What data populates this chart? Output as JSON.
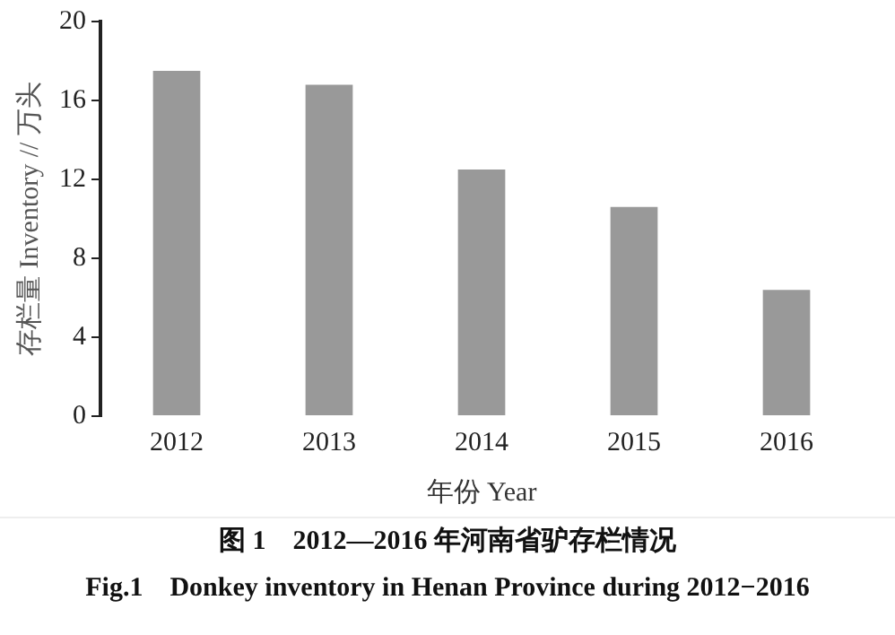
{
  "chart_data": {
    "type": "bar",
    "categories": [
      "2012",
      "2013",
      "2014",
      "2015",
      "2016"
    ],
    "values": [
      17.5,
      16.8,
      12.5,
      10.6,
      6.4
    ],
    "color": "#999999",
    "xlabel": "年份 Year",
    "ylabel": "存栏量 Inventory // 万头",
    "ylim": [
      0,
      20
    ],
    "yticks": [
      0,
      4,
      8,
      12,
      16,
      20
    ],
    "grid": false,
    "legend": false,
    "annotations": [
      "图 1　2012—2016 年河南省驴存栏情况",
      "Fig.1　Donkey inventory in Henan Province during 2012−2016"
    ]
  }
}
